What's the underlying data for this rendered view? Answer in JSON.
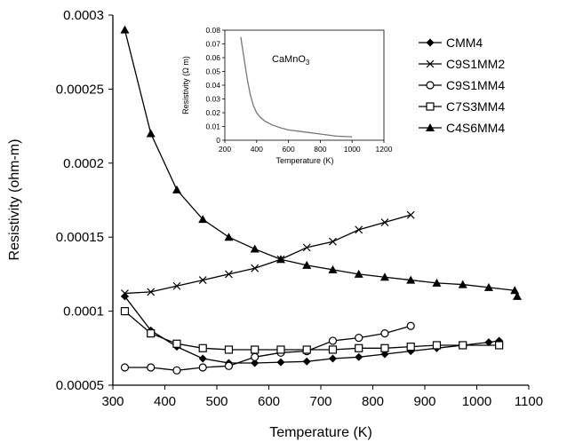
{
  "chart_data": [
    {
      "type": "line",
      "title": "",
      "xlabel": "Temperature (K)",
      "ylabel": "Resistivity (ohm-m)",
      "xlim": [
        300,
        1100
      ],
      "ylim": [
        5e-05,
        0.0003
      ],
      "x_ticks": [
        "300",
        "400",
        "500",
        "600",
        "700",
        "800",
        "900",
        "1000",
        "1100"
      ],
      "y_ticks": [
        "0.00005",
        "0.0001",
        "0.00015",
        "0.0002",
        "0.00025",
        "0.0003"
      ],
      "legend_position": "top-right",
      "grid": false,
      "series": [
        {
          "name": "CMM4",
          "marker": "diamond",
          "color": "#000000",
          "x": [
            323,
            373,
            423,
            473,
            523,
            573,
            623,
            673,
            723,
            773,
            823,
            873,
            923,
            973,
            1023,
            1043
          ],
          "y": [
            0.00011,
            8.7e-05,
            7.6e-05,
            6.8e-05,
            6.5e-05,
            6.5e-05,
            6.55e-05,
            6.6e-05,
            6.8e-05,
            6.9e-05,
            7.1e-05,
            7.3e-05,
            7.5e-05,
            7.7e-05,
            7.9e-05,
            8e-05
          ]
        },
        {
          "name": "C9S1MM2",
          "marker": "cross",
          "color": "#000000",
          "x": [
            323,
            373,
            423,
            473,
            523,
            573,
            623,
            673,
            723,
            773,
            823,
            873
          ],
          "y": [
            0.000112,
            0.000113,
            0.000117,
            0.000121,
            0.000125,
            0.000129,
            0.000135,
            0.000143,
            0.000147,
            0.000155,
            0.00016,
            0.000165
          ]
        },
        {
          "name": "C9S1MM4",
          "marker": "circle",
          "color": "#000000",
          "x": [
            323,
            373,
            423,
            473,
            523,
            573,
            623,
            673,
            723,
            773,
            823,
            873
          ],
          "y": [
            6.2e-05,
            6.2e-05,
            6e-05,
            6.2e-05,
            6.3e-05,
            6.9e-05,
            7.2e-05,
            7.3e-05,
            8e-05,
            8.2e-05,
            8.5e-05,
            9e-05
          ]
        },
        {
          "name": "C7S3MM4",
          "marker": "square",
          "color": "#000000",
          "x": [
            323,
            373,
            423,
            473,
            523,
            573,
            623,
            673,
            723,
            773,
            823,
            873,
            923,
            973,
            1043
          ],
          "y": [
            0.0001,
            8.5e-05,
            7.8e-05,
            7.5e-05,
            7.4e-05,
            7.4e-05,
            7.4e-05,
            7.4e-05,
            7.4e-05,
            7.5e-05,
            7.5e-05,
            7.6e-05,
            7.7e-05,
            7.7e-05,
            7.7e-05
          ]
        },
        {
          "name": "C4S6MM4",
          "marker": "triangle",
          "color": "#000000",
          "x": [
            323,
            373,
            423,
            473,
            523,
            573,
            623,
            673,
            723,
            773,
            823,
            873,
            923,
            973,
            1023,
            1073,
            1143
          ],
          "y": [
            0.00029,
            0.00022,
            0.000182,
            0.000162,
            0.00015,
            0.000142,
            0.000135,
            0.000131,
            0.000128,
            0.000125,
            0.000123,
            0.000121,
            0.000119,
            0.000118,
            0.000116,
            0.000114,
            0.00011
          ]
        }
      ]
    },
    {
      "type": "line",
      "title": "",
      "annotation": "CaMnO3",
      "xlabel": "Temperature (K)",
      "ylabel": "Resistivity (Ω m)",
      "xlim": [
        200,
        1200
      ],
      "ylim": [
        0,
        0.08
      ],
      "x_ticks": [
        "200",
        "400",
        "600",
        "800",
        "1000",
        "1200"
      ],
      "y_ticks": [
        "0",
        "0.01",
        "0.02",
        "0.03",
        "0.04",
        "0.05",
        "0.06",
        "0.07",
        "0.08"
      ],
      "series": [
        {
          "name": "",
          "color": "#777777",
          "x": [
            300,
            320,
            340,
            360,
            380,
            400,
            420,
            450,
            500,
            550,
            600,
            700,
            800,
            900,
            1000
          ],
          "y": [
            0.075,
            0.06,
            0.045,
            0.033,
            0.025,
            0.02,
            0.017,
            0.014,
            0.011,
            0.009,
            0.0075,
            0.006,
            0.0045,
            0.003,
            0.0025
          ]
        }
      ]
    }
  ]
}
